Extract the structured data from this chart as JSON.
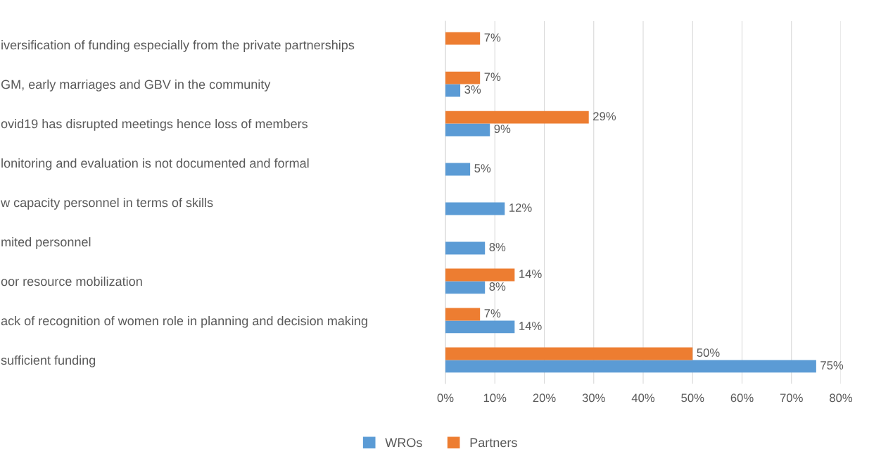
{
  "chart_data": {
    "type": "bar",
    "orientation": "horizontal",
    "categories": [
      "iversification of funding especially from the private partnerships",
      "GM, early marriages and GBV in the community",
      "ovid19 has disrupted meetings hence loss of members",
      "lonitoring and evaluation is not documented and formal",
      "w capacity personnel in terms of skills",
      "mited personnel",
      "oor resource mobilization",
      "ack of recognition of women role in planning and decision making",
      "sufficient funding"
    ],
    "series": [
      {
        "name": "WROs",
        "color": "#5b9bd5",
        "values": [
          null,
          3,
          9,
          5,
          12,
          8,
          8,
          14,
          75
        ],
        "value_labels": [
          null,
          "3%",
          "9%",
          "5%",
          "12%",
          "8%",
          "8%",
          "14%",
          "75%"
        ]
      },
      {
        "name": "Partners",
        "color": "#ed7d31",
        "values": [
          7,
          7,
          29,
          null,
          null,
          null,
          14,
          7,
          50
        ],
        "value_labels": [
          "7%",
          "7%",
          "29%",
          null,
          null,
          null,
          "14%",
          "7%",
          "50%"
        ]
      }
    ],
    "xlim": [
      0,
      80
    ],
    "xticks": [
      {
        "value": 0,
        "label": "0%"
      },
      {
        "value": 10,
        "label": "10%"
      },
      {
        "value": 20,
        "label": "20%"
      },
      {
        "value": 30,
        "label": "30%"
      },
      {
        "value": 40,
        "label": "40%"
      },
      {
        "value": 50,
        "label": "50%"
      },
      {
        "value": 60,
        "label": "60%"
      },
      {
        "value": 70,
        "label": "70%"
      },
      {
        "value": 80,
        "label": "80%"
      }
    ],
    "grid": "x",
    "legend": "bottom"
  }
}
